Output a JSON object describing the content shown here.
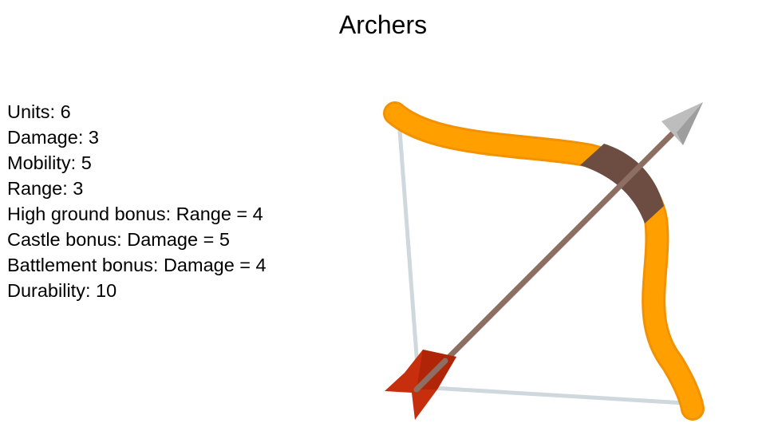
{
  "slide": {
    "title": "Archers",
    "stats": [
      "Units: 6",
      "Damage: 3",
      "Mobility: 5",
      "Range: 3",
      "High ground bonus: Range = 4",
      "Castle bonus: Damage = 5",
      "Battlement bonus: Damage = 4",
      "Durability: 10"
    ],
    "illustration": {
      "icon": "bow-and-arrow-icon",
      "colors": {
        "bow": "#FFA000",
        "bow_outline": "#F39200",
        "grip": "#6D4C41",
        "string": "#CFD8DC",
        "arrow_shaft": "#8D6E63",
        "arrowhead": "#BDBDBD",
        "fletching": "#C62E0E"
      }
    }
  }
}
